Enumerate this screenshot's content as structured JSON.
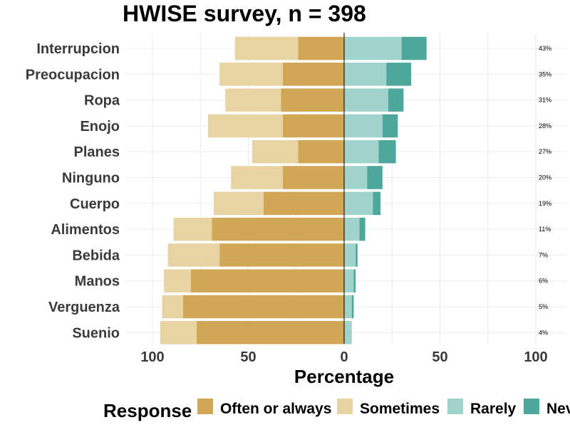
{
  "chart_data": {
    "type": "bar",
    "title": "HWISE survey, n = 398",
    "xlabel": "Percentage",
    "ylabel": "",
    "xlim": [
      -100,
      100
    ],
    "x_ticks": [
      -100,
      -50,
      0,
      50,
      100
    ],
    "x_tick_labels": [
      "100",
      "50",
      "0",
      "50",
      "100"
    ],
    "grid": true,
    "legend_position": "bottom",
    "legend_title": "Response",
    "categories": [
      "Interrupcion",
      "Preocupacion",
      "Ropa",
      "Enojo",
      "Planes",
      "Ninguno",
      "Cuerpo",
      "Alimentos",
      "Bebida",
      "Manos",
      "Verguenza",
      "Suenio"
    ],
    "series": [
      {
        "name": "Often or always",
        "color": "#D1A655",
        "side": "negative",
        "values": [
          24,
          32,
          33,
          32,
          24,
          32,
          42,
          69,
          65,
          80,
          84,
          77
        ]
      },
      {
        "name": "Sometimes",
        "color": "#E8D3A3",
        "side": "negative",
        "values": [
          33,
          33,
          29,
          39,
          24,
          27,
          26,
          20,
          27,
          14,
          11,
          19
        ]
      },
      {
        "name": "Rarely",
        "color": "#9FD3CB",
        "side": "positive",
        "values": [
          30,
          22,
          23,
          20,
          18,
          12,
          15,
          8,
          6,
          5,
          4,
          4
        ]
      },
      {
        "name": "Never",
        "color": "#4DA89B",
        "side": "positive",
        "values": [
          13,
          13,
          8,
          8,
          9,
          8,
          4,
          3,
          1,
          1,
          1,
          0
        ]
      }
    ],
    "right_labels": [
      "43%",
      "35%",
      "31%",
      "28%",
      "27%",
      "20%",
      "19%",
      "11%",
      "7%",
      "6%",
      "5%",
      "4%"
    ]
  }
}
